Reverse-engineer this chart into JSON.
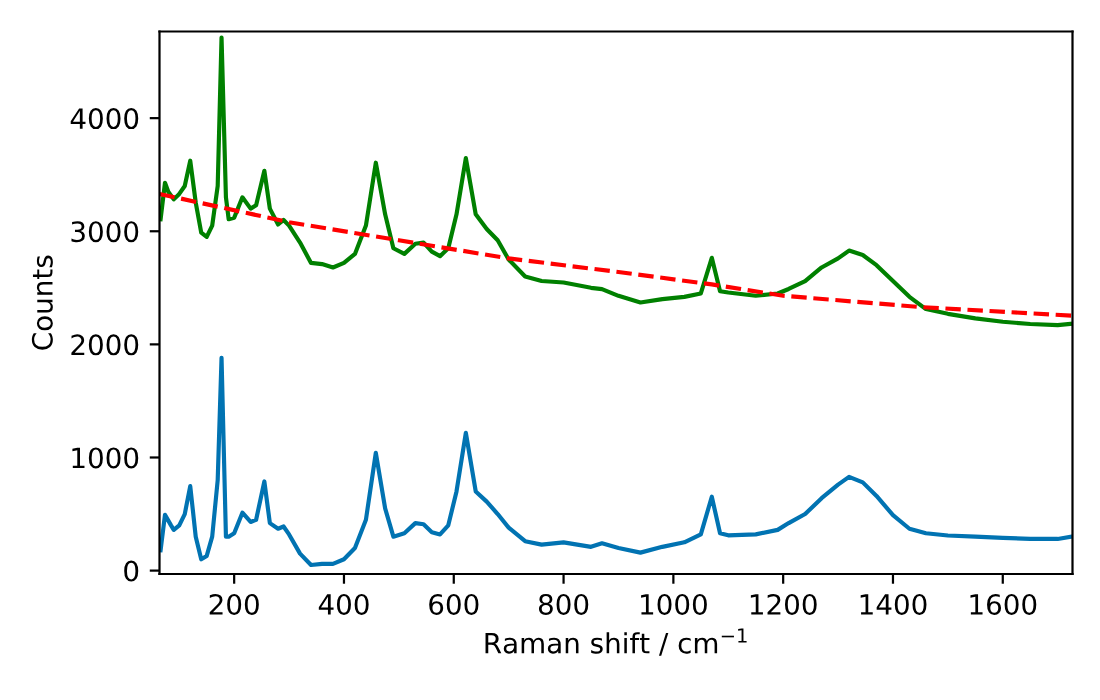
{
  "chart_data": {
    "type": "line",
    "xlabel": "Raman shift / cm$^{−1}$",
    "ylabel": "Counts",
    "xlim": [
      64,
      1727
    ],
    "ylim": [
      -30,
      4766
    ],
    "xticks": [
      200,
      400,
      600,
      800,
      1000,
      1200,
      1400,
      1600
    ],
    "yticks": [
      0,
      1000,
      2000,
      3000,
      4000
    ],
    "grid": false,
    "legend": false,
    "series": [
      {
        "color": "#008000",
        "x": [
          66,
          74,
          80,
          90,
          100,
          110,
          120,
          130,
          140,
          150,
          160,
          170,
          177,
          185,
          190,
          200,
          215,
          230,
          240,
          255,
          265,
          280,
          290,
          300,
          320,
          340,
          360,
          380,
          400,
          420,
          440,
          458,
          475,
          490,
          510,
          530,
          545,
          560,
          575,
          590,
          605,
          622,
          640,
          660,
          680,
          700,
          730,
          760,
          800,
          850,
          870,
          900,
          940,
          980,
          1020,
          1050,
          1070,
          1085,
          1100,
          1150,
          1190,
          1210,
          1240,
          1270,
          1300,
          1320,
          1345,
          1370,
          1400,
          1430,
          1460,
          1500,
          1550,
          1600,
          1650,
          1700,
          1725
        ],
        "values": [
          3106,
          3429,
          3350,
          3282,
          3330,
          3400,
          3624,
          3253,
          2988,
          2950,
          3050,
          3400,
          4712,
          3300,
          3106,
          3120,
          3300,
          3200,
          3230,
          3535,
          3200,
          3060,
          3100,
          3050,
          2900,
          2720,
          2710,
          2680,
          2720,
          2800,
          3050,
          3606,
          3150,
          2850,
          2800,
          2890,
          2900,
          2820,
          2780,
          2850,
          3150,
          3647,
          3150,
          3020,
          2920,
          2750,
          2600,
          2560,
          2547,
          2500,
          2488,
          2429,
          2370,
          2400,
          2420,
          2450,
          2765,
          2470,
          2459,
          2430,
          2450,
          2490,
          2560,
          2680,
          2760,
          2829,
          2790,
          2700,
          2560,
          2420,
          2312,
          2270,
          2230,
          2200,
          2180,
          2170,
          2182
        ]
      },
      {
        "color": "#0173b2",
        "x": [
          66,
          74,
          85,
          90,
          100,
          110,
          120,
          130,
          140,
          150,
          160,
          170,
          177,
          185,
          190,
          200,
          215,
          230,
          240,
          255,
          265,
          280,
          290,
          300,
          320,
          340,
          360,
          380,
          400,
          420,
          440,
          458,
          475,
          490,
          510,
          530,
          545,
          560,
          575,
          590,
          605,
          622,
          640,
          660,
          680,
          700,
          730,
          760,
          800,
          850,
          870,
          900,
          940,
          980,
          1020,
          1050,
          1070,
          1085,
          1100,
          1150,
          1190,
          1210,
          1240,
          1270,
          1300,
          1320,
          1345,
          1370,
          1400,
          1430,
          1460,
          1500,
          1550,
          1600,
          1650,
          1700,
          1725
        ],
        "values": [
          180,
          494,
          400,
          360,
          400,
          500,
          747,
          300,
          100,
          130,
          300,
          800,
          1882,
          300,
          300,
          330,
          512,
          430,
          450,
          788,
          420,
          370,
          390,
          320,
          150,
          50,
          60,
          60,
          100,
          200,
          450,
          1041,
          550,
          300,
          330,
          420,
          410,
          340,
          320,
          400,
          700,
          1218,
          700,
          610,
          500,
          380,
          260,
          230,
          250,
          210,
          241,
          200,
          159,
          210,
          250,
          320,
          653,
          330,
          312,
          320,
          360,
          420,
          500,
          640,
          760,
          829,
          780,
          660,
          490,
          370,
          330,
          310,
          300,
          290,
          280,
          280,
          300
        ]
      },
      {
        "color": "#ff0000",
        "line_style": "dashed",
        "x": [
          64,
          300,
          500,
          700,
          900,
          1070,
          1200,
          1450,
          1727
        ],
        "values": [
          3330,
          3080,
          2920,
          2760,
          2640,
          2530,
          2430,
          2330,
          2253
        ]
      }
    ]
  }
}
